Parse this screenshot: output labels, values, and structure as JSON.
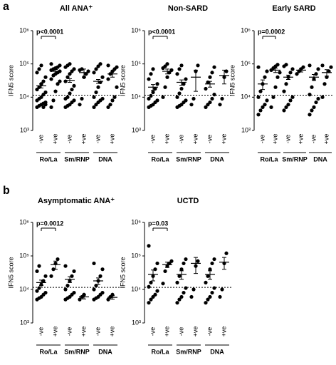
{
  "panel_labels": [
    "a",
    "b"
  ],
  "chart_data": [
    {
      "type": "strip",
      "title": "All ANA⁺",
      "y_label": "IFN5 score",
      "log_scale": true,
      "ylim": [
        1000,
        1000000
      ],
      "yticks": [
        {
          "value": 1000,
          "label": "10³"
        },
        {
          "value": 10000,
          "label": "10⁴"
        },
        {
          "value": 100000,
          "label": "10⁵"
        },
        {
          "value": 1000000,
          "label": "10⁶"
        }
      ],
      "categories": [
        "-ve",
        "+ve",
        "-ve",
        "+ve",
        "-ve",
        "+ve"
      ],
      "groups": [
        "Ro/La",
        "Sm/RNP",
        "DNA"
      ],
      "threshold": 11500,
      "annotation": "p<0.0001",
      "color": "#000000",
      "points": [
        [
          5000,
          5500,
          6000,
          6500,
          7000,
          8000,
          9000,
          10000,
          12000,
          14000,
          17000,
          20000,
          25000,
          30000,
          40000,
          55000,
          70000,
          90000,
          5000,
          6000
        ],
        [
          5000,
          8000,
          15000,
          25000,
          30000,
          35000,
          45000,
          50000,
          55000,
          60000,
          65000,
          70000,
          75000,
          80000,
          90000,
          100000
        ],
        [
          5000,
          5500,
          6000,
          7000,
          8000,
          9000,
          10000,
          13000,
          17000,
          22000,
          30000,
          40000,
          50000,
          60000,
          70000,
          80000,
          90000,
          100000
        ],
        [
          6000,
          9000,
          40000,
          50000,
          60000,
          65000,
          70000
        ],
        [
          5000,
          6000,
          7000,
          8000,
          9000,
          10000,
          14000,
          20000,
          28000,
          40000,
          55000,
          70000,
          85000,
          100000
        ],
        [
          5000,
          6000,
          8000,
          10000,
          20000,
          35000,
          50000,
          60000,
          70000,
          80000,
          90000
        ]
      ],
      "means": [
        22000,
        60000,
        32000,
        55000,
        30000,
        50000
      ],
      "errors": [
        3000,
        8000,
        4000,
        15000,
        4000,
        10000
      ]
    },
    {
      "type": "strip",
      "title": "Non-SARD",
      "y_label": "IFN5 score",
      "log_scale": true,
      "ylim": [
        1000,
        1000000
      ],
      "yticks": [
        {
          "value": 1000,
          "label": "10³"
        },
        {
          "value": 10000,
          "label": "10⁴"
        },
        {
          "value": 100000,
          "label": "10⁵"
        },
        {
          "value": 1000000,
          "label": "10⁶"
        }
      ],
      "categories": [
        "-ve",
        "+ve",
        "-ve",
        "+ve",
        "-ve",
        "+ve"
      ],
      "groups": [
        "Ro/La",
        "Sm/RNP",
        "DNA"
      ],
      "threshold": 11500,
      "annotation": "p<0.0001",
      "color": "#000000",
      "points": [
        [
          5000,
          5500,
          6000,
          7000,
          8000,
          9000,
          11000,
          14000,
          18000,
          25000,
          35000,
          50000,
          70000
        ],
        [
          10000,
          20000,
          40000,
          55000,
          65000,
          75000,
          85000,
          100000
        ],
        [
          5000,
          5500,
          6000,
          7000,
          8000,
          10000,
          13000,
          18000,
          25000,
          35000,
          50000,
          70000,
          90000
        ],
        [
          6000,
          9000,
          60000,
          90000
        ],
        [
          5000,
          6000,
          7000,
          9000,
          12000,
          18000,
          28000,
          40000,
          55000,
          80000
        ],
        [
          6000,
          9000,
          40000,
          60000
        ]
      ],
      "means": [
        20000,
        60000,
        28000,
        40000,
        25000,
        45000
      ],
      "errors": [
        4000,
        10000,
        5000,
        25000,
        5000,
        20000
      ]
    },
    {
      "type": "strip",
      "title": "Early SARD",
      "y_label": "IFN5 score",
      "log_scale": true,
      "ylim": [
        1000,
        1000000
      ],
      "yticks": [
        {
          "value": 1000,
          "label": "10³"
        },
        {
          "value": 10000,
          "label": "10⁴"
        },
        {
          "value": 100000,
          "label": "10⁵"
        },
        {
          "value": 1000000,
          "label": "10⁶"
        }
      ],
      "categories": [
        "-ve",
        "+ve",
        "-ve",
        "+ve",
        "-ve",
        "+ve"
      ],
      "groups": [
        "Ro/La",
        "Sm/RNP",
        "DNA"
      ],
      "threshold": 11500,
      "annotation": "p=0.0002",
      "color": "#000000",
      "points": [
        [
          3000,
          4000,
          5000,
          6000,
          8000,
          10000,
          15000,
          25000,
          40000,
          60000,
          80000
        ],
        [
          5000,
          10000,
          20000,
          40000,
          55000,
          65000,
          75000,
          85000,
          95000
        ],
        [
          4000,
          5000,
          6000,
          8000,
          10000,
          15000,
          25000,
          40000,
          55000,
          70000,
          85000,
          95000
        ],
        [
          50000,
          60000,
          70000,
          80000
        ],
        [
          3000,
          4000,
          5000,
          7000,
          9000,
          12000,
          20000,
          35000,
          50000,
          70000,
          90000
        ],
        [
          10000,
          25000,
          40000,
          60000,
          80000,
          90000
        ]
      ],
      "means": [
        25000,
        65000,
        40000,
        65000,
        40000,
        55000
      ],
      "errors": [
        8000,
        10000,
        6000,
        8000,
        8000,
        12000
      ]
    },
    {
      "type": "strip",
      "title": "Asymptomatic ANA⁺",
      "y_label": "IFN5 score",
      "log_scale": true,
      "ylim": [
        1000,
        1000000
      ],
      "yticks": [
        {
          "value": 1000,
          "label": "10³"
        },
        {
          "value": 10000,
          "label": "10⁴"
        },
        {
          "value": 100000,
          "label": "10⁵"
        },
        {
          "value": 1000000,
          "label": "10⁶"
        }
      ],
      "categories": [
        "-ve",
        "+ve",
        "-ve",
        "+ve",
        "-ve",
        "+ve"
      ],
      "groups": [
        "Ro/La",
        "Sm/RNP",
        "DNA"
      ],
      "threshold": 11500,
      "annotation": "p=0.0012",
      "color": "#000000",
      "points": [
        [
          5000,
          5500,
          6000,
          7000,
          8000,
          9000,
          11000,
          14000,
          18000,
          25000,
          35000,
          50000
        ],
        [
          25000,
          40000,
          60000,
          80000
        ],
        [
          5000,
          5500,
          6000,
          7000,
          8000,
          10000,
          13000,
          18000,
          25000,
          35000,
          50000
        ],
        [
          5000,
          6000,
          7000
        ],
        [
          5000,
          5500,
          6000,
          7000,
          8000,
          10000,
          13000,
          18000,
          25000,
          40000,
          60000
        ],
        [
          5000,
          6000,
          7000
        ]
      ],
      "means": [
        16000,
        55000,
        20000,
        6000,
        18000,
        5800
      ],
      "errors": [
        3000,
        15000,
        4000,
        800,
        4000,
        700
      ]
    },
    {
      "type": "strip",
      "title": "UCTD",
      "y_label": "IFN5 score",
      "log_scale": true,
      "ylim": [
        1000,
        1000000
      ],
      "yticks": [
        {
          "value": 1000,
          "label": "10³"
        },
        {
          "value": 10000,
          "label": "10⁴"
        },
        {
          "value": 100000,
          "label": "10⁵"
        },
        {
          "value": 1000000,
          "label": "10⁶"
        }
      ],
      "categories": [
        "-ve",
        "+ve",
        "-ve",
        "+ve",
        "-ve",
        "+ve"
      ],
      "groups": [
        "Ro/La",
        "Sm/RNP",
        "DNA"
      ],
      "threshold": 11500,
      "annotation": "p=0.03",
      "color": "#000000",
      "points": [
        [
          4000,
          5000,
          6000,
          7000,
          9000,
          12000,
          16000,
          25000,
          40000,
          60000,
          200000
        ],
        [
          15000,
          35000,
          50000,
          60000,
          70000
        ],
        [
          4000,
          5000,
          6000,
          8000,
          11000,
          16000,
          25000,
          40000,
          60000,
          80000
        ],
        [
          6000,
          10000,
          50000,
          70000
        ],
        [
          4000,
          5000,
          6000,
          8000,
          11000,
          16000,
          25000,
          40000,
          60000,
          80000
        ],
        [
          6000,
          10000,
          60000,
          120000
        ]
      ],
      "means": [
        28000,
        55000,
        28000,
        60000,
        28000,
        65000
      ],
      "errors": [
        10000,
        10000,
        8000,
        30000,
        8000,
        25000
      ]
    }
  ]
}
